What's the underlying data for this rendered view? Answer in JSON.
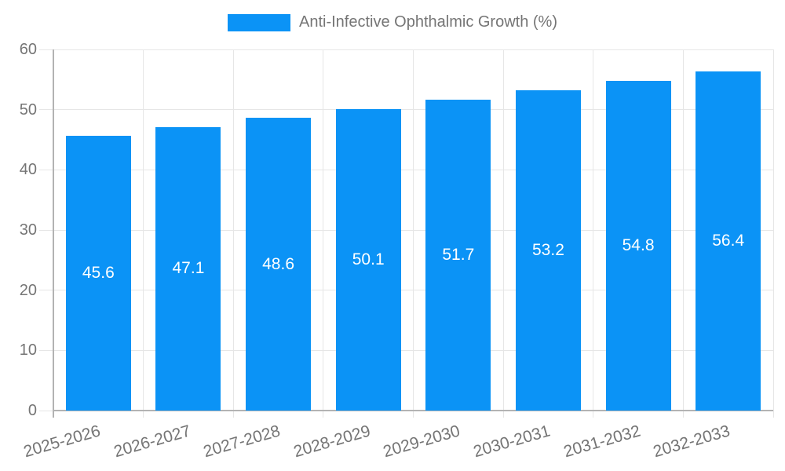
{
  "chart_data": {
    "type": "bar",
    "title": "Anti-Infective Ophthalmic Growth (%)",
    "legend_label": "Anti-Infective Ophthalmic Growth (%)",
    "legend_position": "top",
    "categories": [
      "2025-2026",
      "2026-2027",
      "2027-2028",
      "2028-2029",
      "2029-2030",
      "2030-2031",
      "2031-2032",
      "2032-2033"
    ],
    "values": [
      45.6,
      47.1,
      48.6,
      50.1,
      51.7,
      53.2,
      54.8,
      56.4
    ],
    "value_labels": [
      "45.6",
      "47.1",
      "48.6",
      "50.1",
      "51.7",
      "53.2",
      "54.8",
      "56.4"
    ],
    "xlabel": "",
    "ylabel": "",
    "ylim": [
      0,
      60
    ],
    "yticks": [
      0,
      10,
      20,
      30,
      40,
      50,
      60
    ],
    "grid": true,
    "colors": {
      "bar": "#0b93f6",
      "value_label": "#ffffff",
      "axis_text": "#757575",
      "grid_line": "#e6e6e6",
      "axis_line": "#b3b3b3",
      "background": "#ffffff"
    }
  }
}
